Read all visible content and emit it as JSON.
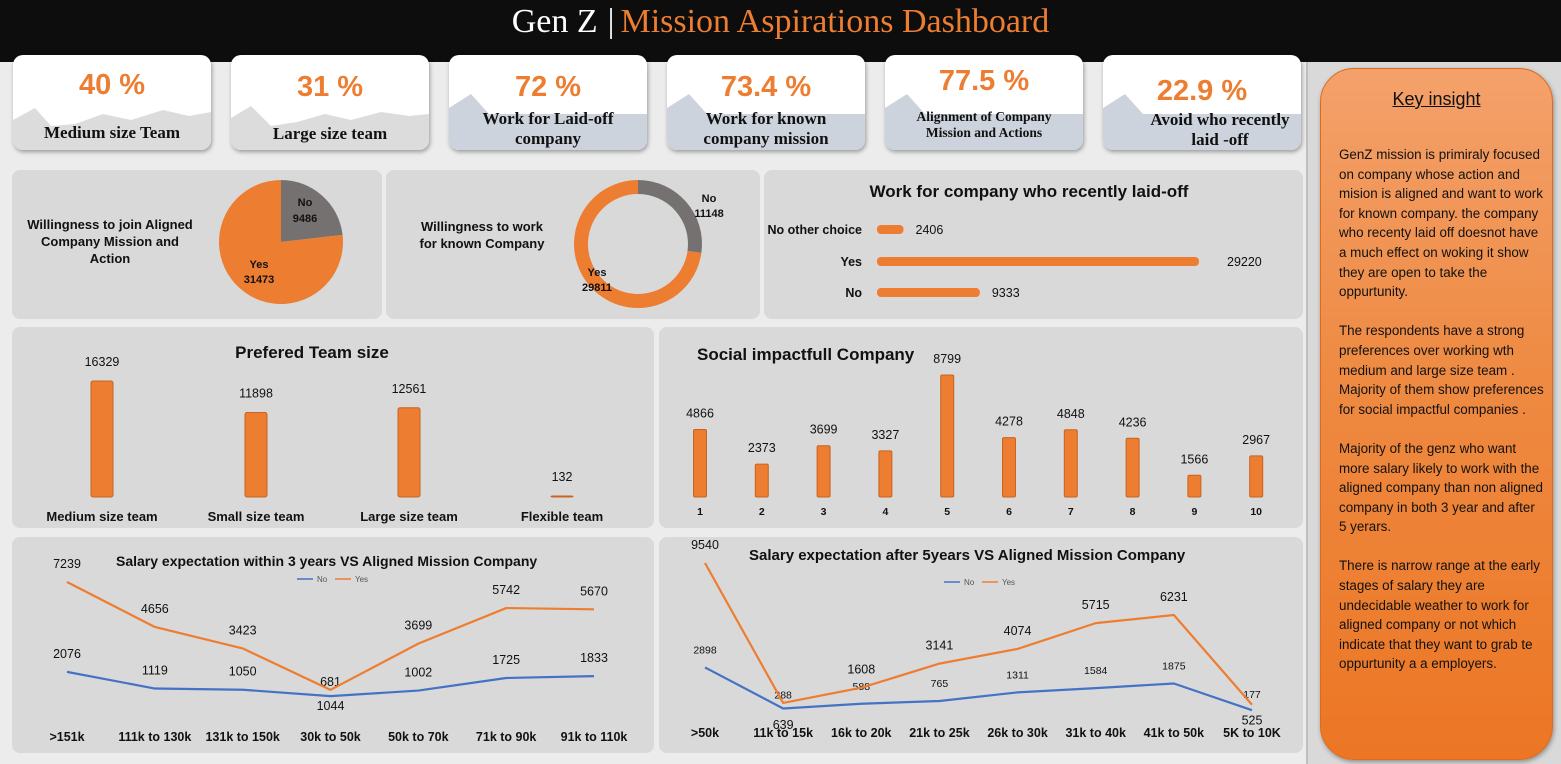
{
  "header": {
    "title_prefix": "Gen Z",
    "separator": "|",
    "title_main": "Mission Aspirations Dashboard"
  },
  "kpis": [
    {
      "value": "40 %",
      "label": "Medium size Team"
    },
    {
      "value": "31 %",
      "label": "Large size team"
    },
    {
      "value": "72 %",
      "label": "Work for Laid-off company"
    },
    {
      "value": "73.4 %",
      "label": "Work for known company mission"
    },
    {
      "value": "77.5 %",
      "label": "Alignment of Company Mission and Actions"
    },
    {
      "value": "22.9 %",
      "label": "Avoid who recently laid -off"
    }
  ],
  "pie_aligned": {
    "title": "Willingness to join Aligned Company Mission and Action",
    "no_label": "No",
    "no_value": "9486",
    "yes_label": "Yes",
    "yes_value": "31473"
  },
  "donut_known": {
    "title": "Willingness to work for known Company",
    "no_label": "No",
    "no_value": "11148",
    "yes_label": "Yes",
    "yes_value": "29811"
  },
  "laidoff": {
    "title": "Work for company who recently laid-off"
  },
  "team": {
    "title": "Prefered Team size"
  },
  "social": {
    "title": "Social impactfull Company"
  },
  "sal3": {
    "title": "Salary expectation within 3 years  VS  Aligned Mission Company"
  },
  "sal5": {
    "title": "Salary expectation after 5years  VS  Aligned Mission Company"
  },
  "colors": {
    "orange": "#ed7d31",
    "blue": "#4472c4",
    "grey": "#767171",
    "dark": "#0d0d0d"
  },
  "chart_data": [
    {
      "type": "pie",
      "title": "Willingness to join Aligned Company Mission and Action",
      "categories": [
        "No",
        "Yes"
      ],
      "values": [
        9486,
        31473
      ]
    },
    {
      "type": "pie",
      "title": "Willingness to work for known Company",
      "categories": [
        "No",
        "Yes"
      ],
      "values": [
        11148,
        29811
      ]
    },
    {
      "type": "bar",
      "title": "Work for company who recently laid-off",
      "categories": [
        "No other choice",
        "Yes",
        "No"
      ],
      "values": [
        2406,
        29220,
        9333
      ]
    },
    {
      "type": "bar",
      "title": "Prefered Team size",
      "categories": [
        "Medium size team",
        "Small size team",
        "Large size team",
        "Flexible team"
      ],
      "values": [
        16329,
        11898,
        12561,
        132
      ]
    },
    {
      "type": "bar",
      "title": "Social impactfull Company",
      "categories": [
        "1",
        "2",
        "3",
        "4",
        "5",
        "6",
        "7",
        "8",
        "9",
        "10"
      ],
      "values": [
        4866,
        2373,
        3699,
        3327,
        8799,
        4278,
        4848,
        4236,
        1566,
        2967
      ]
    },
    {
      "type": "line",
      "title": "Salary expectation within 3 years  VS  Aligned Mission Company",
      "categories": [
        ">151k",
        "111k to 130k",
        "131k to 150k",
        "30k to 50k",
        "50k to 70k",
        "71k to 90k",
        "91k to 110k"
      ],
      "series": [
        {
          "name": "No",
          "values": [
            2076,
            1119,
            1050,
            681,
            1002,
            1725,
            1833
          ]
        },
        {
          "name": "Yes",
          "values": [
            7239,
            4656,
            3423,
            1044,
            3699,
            5742,
            5670
          ]
        }
      ]
    },
    {
      "type": "line",
      "title": "Salary expectation after 5years  VS  Aligned Mission Company",
      "categories": [
        ">50k",
        "11k to 15k",
        "16k to 20k",
        "21k to 25k",
        "26k to 30k",
        "31k to 40k",
        "41k to 50k",
        "5K to 10K"
      ],
      "series": [
        {
          "name": "No",
          "values": [
            2898,
            288,
            588,
            765,
            1311,
            1584,
            1875,
            177
          ]
        },
        {
          "name": "Yes",
          "values": [
            9540,
            639,
            1608,
            3141,
            4074,
            5715,
            6231,
            525
          ]
        }
      ]
    }
  ],
  "insight": {
    "title": "Key insight",
    "paragraphs": [
      "GenZ mission is primiraly focused on company whose action  and mision is aligned and want to work for known company. the company who recenty laid off doesnot have a much effect on woking it show they are open to take the oppurtunity.",
      "The respondents have a strong preferences over working wth medium and large size team . Majority of them  show preferences for social impactful companies .",
      "Majority  of the genz who want more salary likely to work with the aligned company than non aligned company in both 3 year and after 5 yerars.",
      "There  is narrow range at the early stages of salary they are undecidable  weather to work for aligned company or not which indicate that  they want to  grab te oppurtunity a a employers."
    ]
  }
}
